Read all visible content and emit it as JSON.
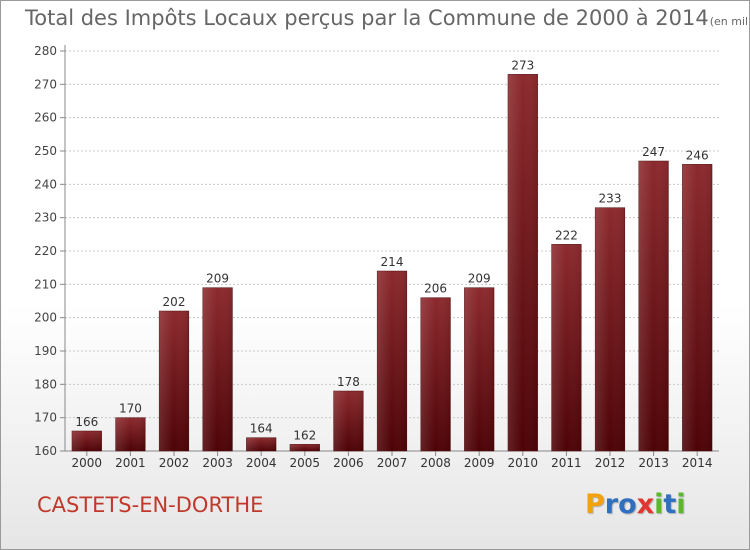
{
  "title": "Total des Impôts Locaux perçus par la Commune de 2000 à 2014",
  "subtitle": "(en milliers d'€)",
  "commune": "CASTETS-EN-DORTHE",
  "logo": {
    "letters": [
      "P",
      "r",
      "o",
      "x",
      "i",
      "t",
      "i"
    ],
    "colors": [
      "#f2a10f",
      "#2f6fc0",
      "#2f6fc0",
      "#e3342f",
      "#5cb82b",
      "#2f6fc0",
      "#5cb82b"
    ]
  },
  "chart_data": {
    "type": "bar",
    "categories": [
      "2000",
      "2001",
      "2002",
      "2003",
      "2004",
      "2005",
      "2006",
      "2007",
      "2008",
      "2009",
      "2010",
      "2011",
      "2012",
      "2013",
      "2014"
    ],
    "values": [
      166,
      170,
      202,
      209,
      164,
      162,
      178,
      214,
      206,
      209,
      273,
      222,
      233,
      247,
      246
    ],
    "ylim": [
      160,
      280
    ],
    "yticks": [
      160,
      170,
      180,
      190,
      200,
      210,
      220,
      230,
      240,
      250,
      260,
      270,
      280
    ],
    "grid": true,
    "bar_color": "#7a1e22"
  }
}
